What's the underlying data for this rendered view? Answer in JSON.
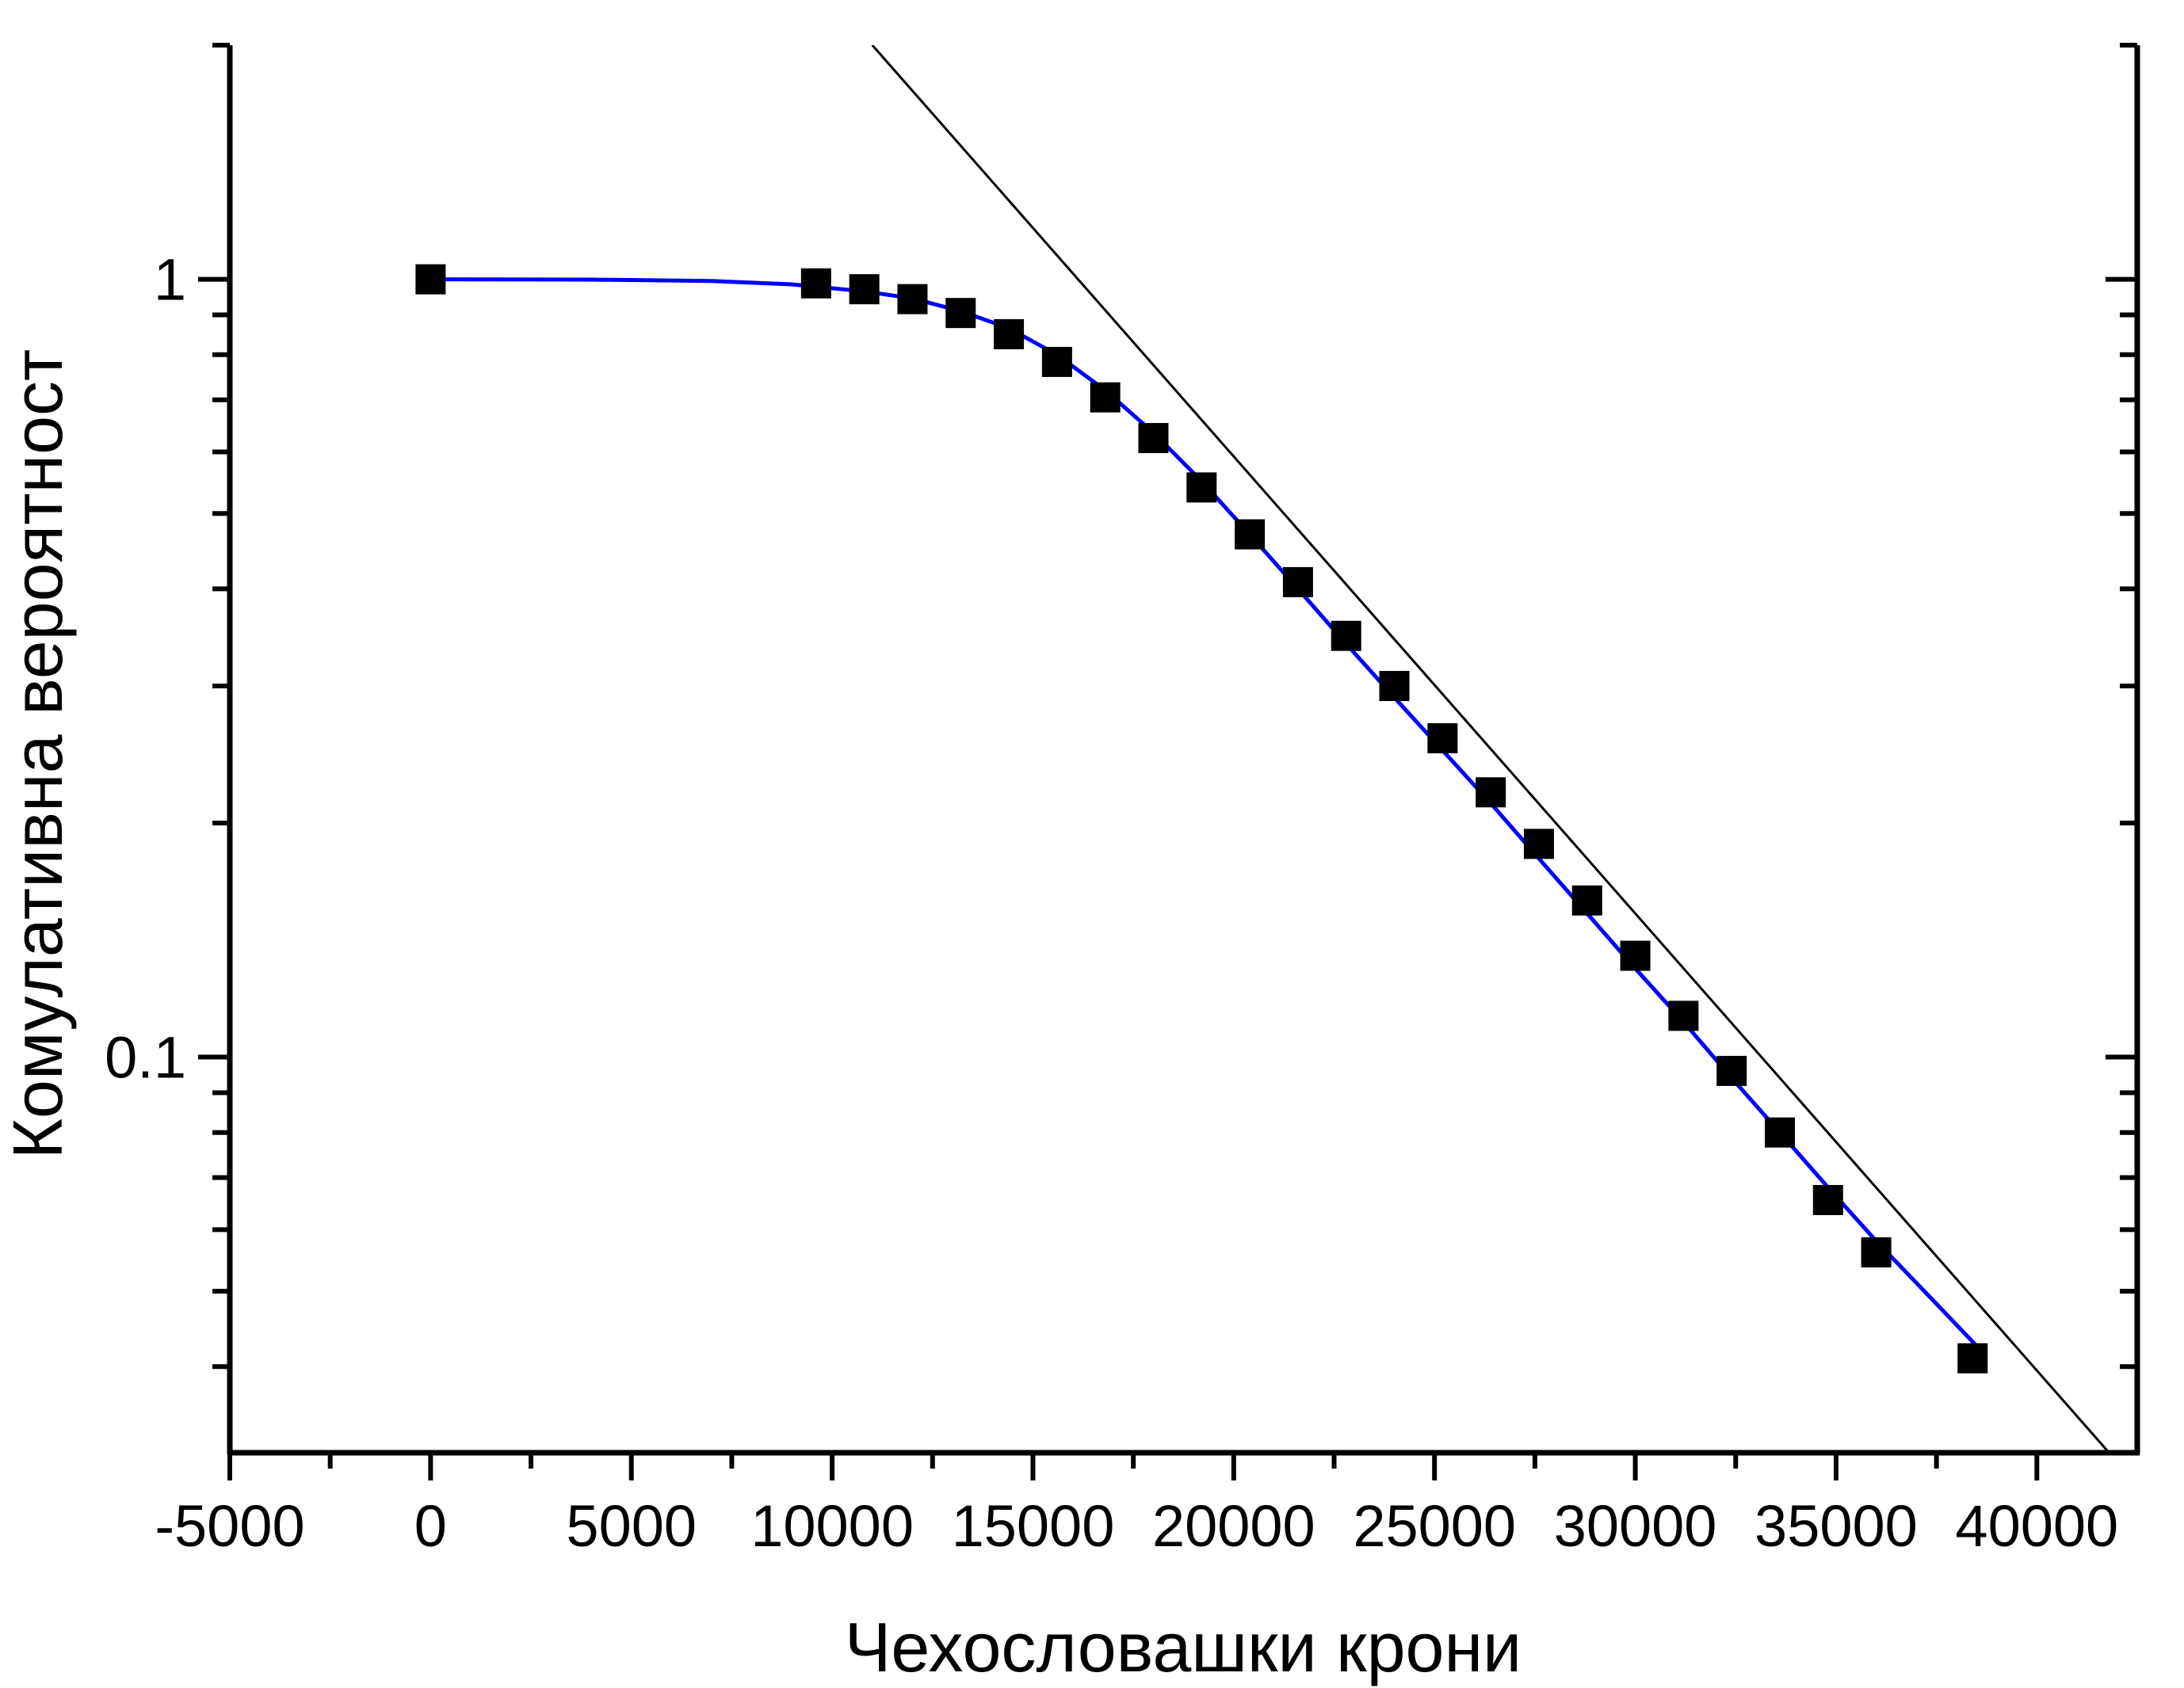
{
  "chart_data": {
    "type": "scatter",
    "title": "",
    "xlabel": "Чехословашки крони",
    "ylabel": "Комулативна вероятност",
    "xlim": [
      -5000,
      42500
    ],
    "ylim": [
      0.031,
      2
    ],
    "yscale": "log",
    "grid": false,
    "xticks": [
      -5000,
      0,
      5000,
      10000,
      15000,
      20000,
      25000,
      30000,
      35000,
      40000
    ],
    "xtick_labels": [
      "-5000",
      "0",
      "5000",
      "10000",
      "15000",
      "20000",
      "25000",
      "30000",
      "35000",
      "40000"
    ],
    "yticks": [
      1,
      0.1
    ],
    "ytick_labels": [
      "1",
      "0.1"
    ],
    "series": [
      {
        "name": "data",
        "kind": "scatter",
        "marker": "square",
        "color": "#000000",
        "x": [
          0,
          9600,
          10800,
          12000,
          13200,
          14400,
          15600,
          16800,
          18000,
          19200,
          20400,
          21600,
          22800,
          24000,
          25200,
          26400,
          27600,
          28800,
          30000,
          31200,
          32400,
          33600,
          34800,
          36000,
          38400
        ],
        "y": [
          1.0,
          0.988,
          0.971,
          0.943,
          0.905,
          0.85,
          0.783,
          0.705,
          0.625,
          0.54,
          0.47,
          0.408,
          0.348,
          0.3,
          0.257,
          0.219,
          0.188,
          0.159,
          0.135,
          0.113,
          0.096,
          0.08,
          0.0655,
          0.0561,
          0.041
        ]
      },
      {
        "name": "fit",
        "kind": "line",
        "color": "#0000ff",
        "x": [
          0,
          4000,
          7000,
          9000,
          10800,
          12000,
          13200,
          14400,
          15600,
          16800,
          18000,
          19200,
          20400,
          21600,
          22800,
          24000,
          25200,
          26400,
          27600,
          28800,
          30000,
          31200,
          32400,
          33600,
          34800,
          36000,
          37200,
          38600
        ],
        "y": [
          1.0,
          0.999,
          0.995,
          0.985,
          0.965,
          0.945,
          0.91,
          0.865,
          0.8,
          0.72,
          0.635,
          0.55,
          0.47,
          0.4,
          0.34,
          0.29,
          0.248,
          0.212,
          0.18,
          0.153,
          0.13,
          0.111,
          0.094,
          0.08,
          0.068,
          0.058,
          0.05,
          0.042
        ]
      },
      {
        "name": "asymptote",
        "kind": "line",
        "color": "#000000",
        "x": [
          11000,
          41800
        ],
        "y": [
          2.0,
          0.031
        ]
      }
    ]
  }
}
